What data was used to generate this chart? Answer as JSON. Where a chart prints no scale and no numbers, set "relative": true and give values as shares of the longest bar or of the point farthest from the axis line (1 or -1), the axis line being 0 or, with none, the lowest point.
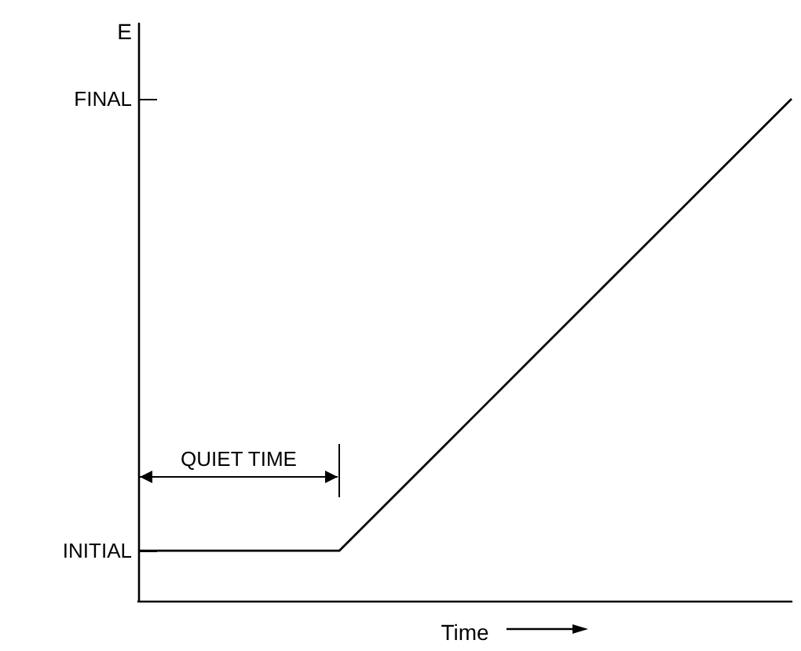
{
  "chart_data": {
    "type": "line",
    "ylabel": "E",
    "xlabel": "Time",
    "relative": true,
    "categories": [
      null,
      null,
      null,
      null,
      null,
      null,
      null,
      null,
      null,
      null,
      null,
      null,
      null,
      null
    ],
    "series": [
      {
        "color": "#000000",
        "values": [
          0.1,
          0.1,
          0.1,
          0.1,
          0.1,
          0.2,
          0.3,
          0.4,
          0.5,
          0.6,
          0.7,
          0.8,
          0.9,
          1
        ]
      }
    ],
    "grid": false,
    "marker": "none",
    "line_style": "solid",
    "annotations": [
      "INITIAL",
      "FINAL",
      "QUIET TIME"
    ]
  }
}
